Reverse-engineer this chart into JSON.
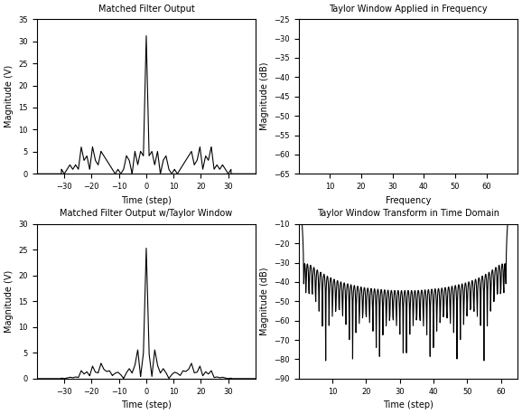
{
  "title_tl": "Matched Filter Output",
  "title_tr": "Taylor Window Applied in Frequency",
  "title_bl": "Matched Filter Output w/Taylor Window",
  "title_br": "Taylor Window Transform in Time Domain",
  "xlabel_time": "Time (step)",
  "xlabel_freq": "Frequency",
  "ylabel_mag_v": "Magnitude (V)",
  "ylabel_mag_db": "Magnitude (dB)",
  "bg_color": "#ffffff",
  "line_color": "#000000",
  "line_width": 0.8,
  "tl_xlim": [
    -40,
    40
  ],
  "tl_ylim": [
    0,
    35
  ],
  "tl_xticks": [
    -30,
    -20,
    -10,
    0,
    10,
    20,
    30
  ],
  "tr_xlim": [
    0,
    70
  ],
  "tr_ylim": [
    -65,
    -25
  ],
  "tr_xticks": [
    10,
    20,
    30,
    40,
    50,
    60
  ],
  "bl_xlim": [
    -40,
    40
  ],
  "bl_ylim": [
    0,
    30
  ],
  "bl_xticks": [
    -30,
    -20,
    -10,
    0,
    10,
    20,
    30
  ],
  "br_xlim": [
    0,
    65
  ],
  "br_ylim": [
    -90,
    -10
  ],
  "br_xticks": [
    10,
    20,
    30,
    40,
    50,
    60
  ]
}
